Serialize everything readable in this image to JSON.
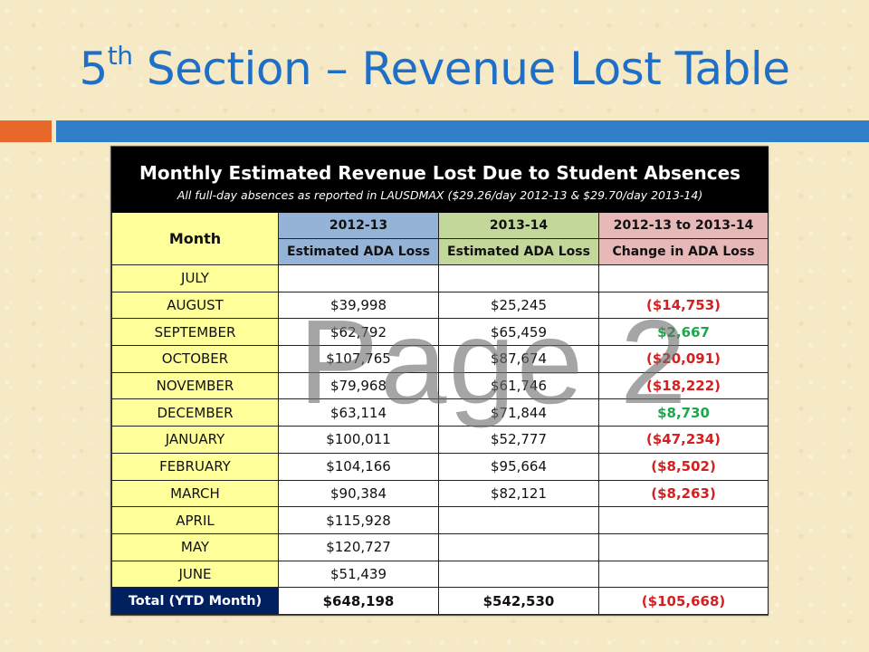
{
  "slide": {
    "title_main": "5",
    "title_sup": "th",
    "title_rest": " Section – Revenue Lost Table",
    "colors": {
      "title": "#1f6fc7",
      "bar_orange": "#e8672b",
      "bar_blue": "#2f80c9"
    }
  },
  "table": {
    "title": "Monthly Estimated Revenue Lost Due to Student Absences",
    "subtitle": "All full-day absences as reported in LAUSDMAX ($29.26/day 2012-13 & $29.70/day 2013-14)",
    "header": {
      "month": "Month",
      "col1_year": "2012-13",
      "col2_year": "2013-14",
      "col3_year": "2012-13 to 2013-14",
      "col1_sub": "Estimated ADA Loss",
      "col2_sub": "Estimated ADA Loss",
      "col3_sub": "Change in ADA Loss"
    },
    "rows": [
      {
        "month": "JULY",
        "y1": "",
        "y2": "",
        "change": "",
        "change_type": ""
      },
      {
        "month": "AUGUST",
        "y1": "$39,998",
        "y2": "$25,245",
        "change": "($14,753)",
        "change_type": "neg"
      },
      {
        "month": "SEPTEMBER",
        "y1": "$62,792",
        "y2": "$65,459",
        "change": "$2,667",
        "change_type": "pos"
      },
      {
        "month": "OCTOBER",
        "y1": "$107,765",
        "y2": "$87,674",
        "change": "($20,091)",
        "change_type": "neg"
      },
      {
        "month": "NOVEMBER",
        "y1": "$79,968",
        "y2": "$61,746",
        "change": "($18,222)",
        "change_type": "neg"
      },
      {
        "month": "DECEMBER",
        "y1": "$63,114",
        "y2": "$71,844",
        "change": "$8,730",
        "change_type": "pos"
      },
      {
        "month": "JANUARY",
        "y1": "$100,011",
        "y2": "$52,777",
        "change": "($47,234)",
        "change_type": "neg"
      },
      {
        "month": "FEBRUARY",
        "y1": "$104,166",
        "y2": "$95,664",
        "change": "($8,502)",
        "change_type": "neg"
      },
      {
        "month": "MARCH",
        "y1": "$90,384",
        "y2": "$82,121",
        "change": "($8,263)",
        "change_type": "neg"
      },
      {
        "month": "APRIL",
        "y1": "$115,928",
        "y2": "",
        "change": "",
        "change_type": ""
      },
      {
        "month": "MAY",
        "y1": "$120,727",
        "y2": "",
        "change": "",
        "change_type": ""
      },
      {
        "month": "JUNE",
        "y1": "$51,439",
        "y2": "",
        "change": "",
        "change_type": ""
      }
    ],
    "total": {
      "label": "Total (YTD Month)",
      "y1": "$648,198",
      "y2": "$542,530",
      "change": "($105,668)"
    },
    "colors": {
      "month_bg": "#ffff99",
      "col1_bg": "#95b3d7",
      "col2_bg": "#c4d79b",
      "col3_bg": "#e6b8b7",
      "negative": "#d42020",
      "positive": "#1aa84a",
      "total_label_bg": "#002060"
    }
  },
  "watermark": "Page 2"
}
